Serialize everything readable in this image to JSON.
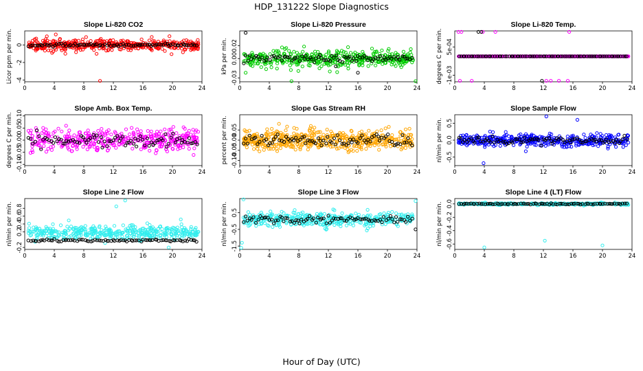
{
  "figure": {
    "title": "HDP_131222  Slope Diagnostics",
    "xlabel": "Hour of Day (UTC)"
  },
  "chart_data": [
    {
      "type": "scatter",
      "title": "Slope Li-820 CO2",
      "ylabel": "Licor ppm per min.",
      "color": "#ff0000",
      "xlim": [
        0,
        24
      ],
      "ylim": [
        -4.2,
        1.6
      ],
      "xticks": [
        "0",
        "4",
        "8",
        "12",
        "16",
        "20",
        "24"
      ],
      "yticks": [
        {
          "v": -4,
          "t": "-4"
        },
        {
          "v": -2,
          "t": "-2"
        },
        {
          "v": 0,
          "t": "0"
        }
      ],
      "primary": {
        "n": 420,
        "center": 0,
        "spread": 0.6,
        "outliers": [
          [
            4.2,
            1.2
          ],
          [
            10.2,
            -4.1
          ],
          [
            3.7,
            -0.9
          ],
          [
            19.6,
            1.0
          ],
          [
            5.5,
            -1.0
          ],
          [
            17.2,
            0.9
          ]
        ]
      },
      "reference": {
        "n": 85,
        "center": 0,
        "spread": 0.15,
        "outliers": []
      }
    },
    {
      "type": "scatter",
      "title": "Slope Li-820 Pressure",
      "ylabel": "kPa per min.",
      "color": "#00cc00",
      "xlim": [
        0,
        24
      ],
      "ylim": [
        -0.036,
        0.043
      ],
      "xticks": [
        "0",
        "4",
        "8",
        "12",
        "16",
        "20",
        "24"
      ],
      "yticks": [
        {
          "v": -0.03,
          "t": "-0.03"
        },
        {
          "v": 0,
          "t": "0.00"
        },
        {
          "v": 0.02,
          "t": "0.02"
        }
      ],
      "primary": {
        "n": 420,
        "center": 0,
        "spread": 0.014,
        "outliers": [
          [
            0.8,
            -0.022
          ],
          [
            7.0,
            -0.035
          ],
          [
            23.8,
            -0.035
          ],
          [
            12.2,
            -0.02
          ]
        ]
      },
      "reference": {
        "n": 85,
        "center": 0,
        "spread": 0.006,
        "outliers": [
          [
            0.8,
            0.04
          ],
          [
            16.0,
            -0.022
          ],
          [
            13.0,
            -0.012
          ]
        ]
      }
    },
    {
      "type": "scatter",
      "title": "Slope Li-820 Temp.",
      "ylabel": "degrees C per min.",
      "color": "#ff00ff",
      "xlim": [
        0,
        24
      ],
      "ylim": [
        -0.00135,
        0.00135
      ],
      "xticks": [
        "0",
        "4",
        "8",
        "12",
        "16",
        "20",
        "24"
      ],
      "yticks": [
        {
          "v": -0.001,
          "t": "-1e-03"
        },
        {
          "v": 0.0005,
          "t": "5e-04"
        }
      ],
      "primary": {
        "n": 420,
        "center": 0,
        "spread": 0,
        "outliers": [
          [
            0.5,
            0.0013
          ],
          [
            0.9,
            0.0013
          ],
          [
            3.8,
            0.0013
          ],
          [
            5.5,
            0.0013
          ],
          [
            15.5,
            0.0013
          ],
          [
            0.7,
            -0.0013
          ],
          [
            2.3,
            -0.0013
          ],
          [
            12.4,
            -0.0013
          ],
          [
            13.0,
            -0.0013
          ],
          [
            14.1,
            -0.0013
          ],
          [
            15.3,
            -0.0013
          ]
        ]
      },
      "reference": {
        "n": 85,
        "center": 0,
        "spread": 0,
        "outliers": [
          [
            3.2,
            0.0013
          ],
          [
            3.6,
            0.0013
          ],
          [
            11.8,
            -0.0013
          ]
        ]
      }
    },
    {
      "type": "scatter",
      "title": "Slope Amb. Box Temp.",
      "ylabel": "degrees C per min.",
      "color": "#ff00ff",
      "xlim": [
        0,
        24
      ],
      "ylim": [
        -0.105,
        0.105
      ],
      "xticks": [
        "0",
        "4",
        "8",
        "12",
        "16",
        "20",
        "24"
      ],
      "yticks": [
        {
          "v": -0.1,
          "t": "-0.10"
        },
        {
          "v": -0.05,
          "t": "-0.05"
        },
        {
          "v": 0,
          "t": "0.00"
        },
        {
          "v": 0.05,
          "t": "0.05"
        },
        {
          "v": 0.1,
          "t": "0.10"
        }
      ],
      "primary": {
        "n": 420,
        "center": 0,
        "spread": 0.045,
        "outliers": []
      },
      "reference": {
        "n": 85,
        "center": 0,
        "spread": 0.025,
        "outliers": []
      }
    },
    {
      "type": "scatter",
      "title": "Slope Gas Stream RH",
      "ylabel": "percent per min.",
      "color": "#ffa500",
      "xlim": [
        0,
        24
      ],
      "ylim": [
        -0.125,
        0.125
      ],
      "xticks": [
        "0",
        "4",
        "8",
        "12",
        "16",
        "20",
        "24"
      ],
      "yticks": [
        {
          "v": -0.1,
          "t": "-0.10"
        },
        {
          "v": -0.05,
          "t": "-0.05"
        },
        {
          "v": 0,
          "t": "0.00"
        },
        {
          "v": 0.05,
          "t": "0.05"
        }
      ],
      "primary": {
        "n": 520,
        "center": 0,
        "spread": 0.05,
        "outliers": []
      },
      "reference": {
        "n": 85,
        "center": 0,
        "spread": 0.03,
        "outliers": []
      }
    },
    {
      "type": "scatter",
      "title": "Slope Sample Flow",
      "ylabel": "nl/min per min.",
      "color": "#0000ff",
      "xlim": [
        0,
        24
      ],
      "ylim": [
        -0.75,
        0.75
      ],
      "xticks": [
        "0",
        "4",
        "8",
        "12",
        "16",
        "20",
        "24"
      ],
      "yticks": [
        {
          "v": -0.5,
          "t": "-0.5"
        },
        {
          "v": 0,
          "t": "0.0"
        },
        {
          "v": 0.5,
          "t": "0.5"
        }
      ],
      "primary": {
        "n": 420,
        "center": 0,
        "spread": 0.18,
        "outliers": [
          [
            3.9,
            -0.68
          ],
          [
            12.4,
            0.7
          ],
          [
            16.6,
            0.6
          ]
        ]
      },
      "reference": {
        "n": 85,
        "center": 0,
        "spread": 0.12,
        "outliers": []
      }
    },
    {
      "type": "scatter",
      "title": "Slope Line 2 Flow",
      "ylabel": "nl/min per min.",
      "color": "#33eeee",
      "xlim": [
        0,
        24
      ],
      "ylim": [
        -0.25,
        1.05
      ],
      "xticks": [
        "0",
        "4",
        "8",
        "12",
        "16",
        "20",
        "24"
      ],
      "yticks": [
        {
          "v": -0.2,
          "t": "-0.2"
        },
        {
          "v": 0.2,
          "t": "0.2"
        },
        {
          "v": 0.4,
          "t": "0.4"
        },
        {
          "v": 0.6,
          "t": "0.6"
        },
        {
          "v": 0.8,
          "t": "0.8"
        }
      ],
      "primary": {
        "n": 420,
        "center": 0.18,
        "spread": 0.17,
        "outliers": [
          [
            13.6,
            1.0
          ],
          [
            19.5,
            -0.2
          ],
          [
            12.4,
            0.85
          ]
        ]
      },
      "reference": {
        "n": 85,
        "center": -0.02,
        "spread": 0.025,
        "outliers": []
      }
    },
    {
      "type": "scatter",
      "title": "Slope Line 3 Flow",
      "ylabel": "nl/min per min.",
      "color": "#33eeee",
      "xlim": [
        0,
        24
      ],
      "ylim": [
        -1.7,
        1.35
      ],
      "xticks": [
        "0",
        "4",
        "8",
        "12",
        "16",
        "20",
        "24"
      ],
      "yticks": [
        {
          "v": -1.5,
          "t": "-1.5"
        },
        {
          "v": -0.5,
          "t": "-0.5"
        },
        {
          "v": 0.5,
          "t": "0.5"
        }
      ],
      "primary": {
        "n": 420,
        "center": 0.1,
        "spread": 0.4,
        "outliers": [
          [
            0.2,
            -1.6
          ],
          [
            0.5,
            1.3
          ],
          [
            23.8,
            1.2
          ],
          [
            0.3,
            -1.3
          ]
        ]
      },
      "reference": {
        "n": 85,
        "center": 0.1,
        "spread": 0.25,
        "outliers": [
          [
            23.8,
            -0.5
          ]
        ]
      }
    },
    {
      "type": "scatter",
      "title": "Slope Line 4 (LT) Flow",
      "ylabel": "nl/min per min.",
      "color": "#33eeee",
      "xlim": [
        0,
        24
      ],
      "ylim": [
        -0.68,
        0.08
      ],
      "xticks": [
        "0",
        "4",
        "8",
        "12",
        "16",
        "20",
        "24"
      ],
      "yticks": [
        {
          "v": -0.6,
          "t": "-0.6"
        },
        {
          "v": -0.4,
          "t": "-0.4"
        },
        {
          "v": -0.2,
          "t": "-0.2"
        },
        {
          "v": 0,
          "t": "0.0"
        }
      ],
      "primary": {
        "n": 300,
        "center": 0,
        "spread": 0.015,
        "outliers": [
          [
            4.0,
            -0.65
          ],
          [
            12.2,
            -0.55
          ],
          [
            20.0,
            -0.62
          ]
        ]
      },
      "reference": {
        "n": 85,
        "center": 0,
        "spread": 0.01,
        "outliers": []
      }
    }
  ]
}
